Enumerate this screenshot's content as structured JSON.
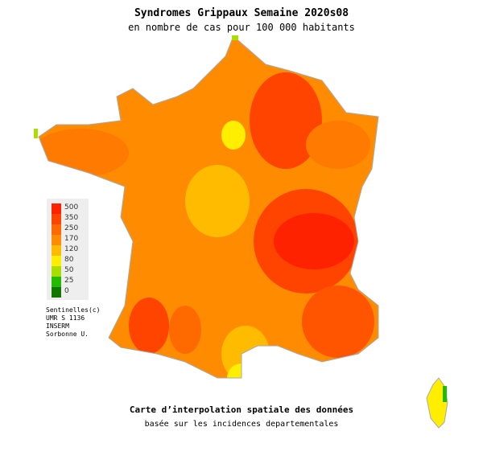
{
  "title": "Syndromes Grippaux Semaine 2020s08",
  "subtitle": "en nombre de cas pour 100 000 habitants",
  "legend": [
    {
      "label": "500",
      "color": "#ff2200"
    },
    {
      "label": "350",
      "color": "#ff4400"
    },
    {
      "label": "250",
      "color": "#ff6a00"
    },
    {
      "label": "170",
      "color": "#ff8c00"
    },
    {
      "label": "120",
      "color": "#ffbb00"
    },
    {
      "label": "80",
      "color": "#ffee00"
    },
    {
      "label": "50",
      "color": "#aadd00"
    },
    {
      "label": "25",
      "color": "#22bb00"
    },
    {
      "label": "0",
      "color": "#117700"
    }
  ],
  "credits": [
    "Sentinelles(c)",
    "UMR S 1136",
    "INSERM",
    "Sorbonne U."
  ],
  "caption": "Carte d’interpolation spatiale des données",
  "caption2": "basée sur les incidences departementales"
}
